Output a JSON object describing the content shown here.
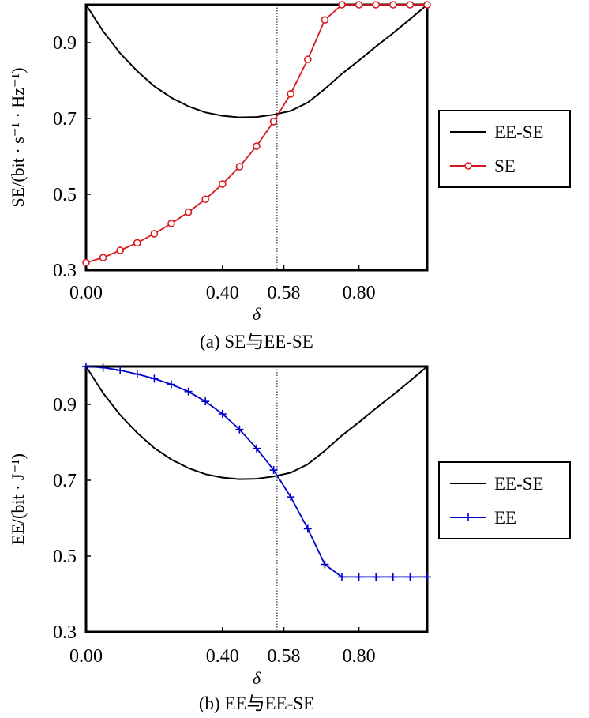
{
  "chart_data": [
    {
      "type": "line",
      "caption": "(a) SE与EE-SE",
      "xlabel": "δ",
      "ylabel": "SE/(bit · s⁻¹ · Hz⁻¹)",
      "xlim": [
        0,
        1
      ],
      "ylim": [
        0.3,
        1.0
      ],
      "xticks": [
        0.0,
        0.4,
        0.58,
        0.8
      ],
      "xtick_labels": [
        "0.00",
        "0.40",
        "0.58",
        "0.80"
      ],
      "yticks": [
        0.3,
        0.5,
        0.7,
        0.9
      ],
      "ytick_labels": [
        "0.3",
        "0.5",
        "0.7",
        "0.9"
      ],
      "vline": 0.56,
      "legend_position": "right",
      "series": [
        {
          "name": "EE-SE",
          "color": "#000000",
          "marker": "none",
          "x": [
            0.0,
            0.05,
            0.1,
            0.15,
            0.2,
            0.25,
            0.3,
            0.35,
            0.4,
            0.45,
            0.5,
            0.55,
            0.6,
            0.65,
            0.7,
            0.75,
            0.8,
            0.85,
            0.9,
            0.95,
            1.0
          ],
          "values": [
            1.0,
            0.93,
            0.872,
            0.825,
            0.785,
            0.755,
            0.732,
            0.716,
            0.707,
            0.703,
            0.704,
            0.71,
            0.72,
            0.742,
            0.778,
            0.818,
            0.853,
            0.89,
            0.925,
            0.962,
            1.0
          ]
        },
        {
          "name": "SE",
          "color": "#d7191c",
          "marker": "circle",
          "x": [
            0.0,
            0.05,
            0.1,
            0.15,
            0.2,
            0.25,
            0.3,
            0.35,
            0.4,
            0.45,
            0.5,
            0.55,
            0.6,
            0.65,
            0.7,
            0.75,
            0.8,
            0.85,
            0.9,
            0.95,
            1.0
          ],
          "values": [
            0.32,
            0.333,
            0.352,
            0.372,
            0.396,
            0.423,
            0.453,
            0.487,
            0.527,
            0.573,
            0.627,
            0.692,
            0.765,
            0.856,
            0.96,
            1.0,
            1.0,
            1.0,
            1.0,
            1.0,
            1.0
          ]
        }
      ]
    },
    {
      "type": "line",
      "caption": "(b) EE与EE-SE",
      "xlabel": "δ",
      "ylabel": "EE/(bit · J⁻¹)",
      "xlim": [
        0,
        1
      ],
      "ylim": [
        0.3,
        1.0
      ],
      "xticks": [
        0.0,
        0.4,
        0.58,
        0.8
      ],
      "xtick_labels": [
        "0.00",
        "0.40",
        "0.58",
        "0.80"
      ],
      "yticks": [
        0.3,
        0.5,
        0.7,
        0.9
      ],
      "ytick_labels": [
        "0.3",
        "0.5",
        "0.7",
        "0.9"
      ],
      "vline": 0.56,
      "legend_position": "right",
      "series": [
        {
          "name": "EE-SE",
          "color": "#000000",
          "marker": "none",
          "x": [
            0.0,
            0.05,
            0.1,
            0.15,
            0.2,
            0.25,
            0.3,
            0.35,
            0.4,
            0.45,
            0.5,
            0.55,
            0.6,
            0.65,
            0.7,
            0.75,
            0.8,
            0.85,
            0.9,
            0.95,
            1.0
          ],
          "values": [
            1.0,
            0.93,
            0.872,
            0.825,
            0.785,
            0.755,
            0.732,
            0.716,
            0.707,
            0.703,
            0.704,
            0.71,
            0.72,
            0.742,
            0.778,
            0.818,
            0.853,
            0.89,
            0.925,
            0.962,
            1.0
          ]
        },
        {
          "name": "EE",
          "color": "#0000cc",
          "marker": "plus",
          "x": [
            0.0,
            0.05,
            0.1,
            0.15,
            0.2,
            0.25,
            0.3,
            0.35,
            0.4,
            0.45,
            0.5,
            0.55,
            0.6,
            0.65,
            0.7,
            0.75,
            0.8,
            0.85,
            0.9,
            0.95,
            1.0
          ],
          "values": [
            1.0,
            0.997,
            0.99,
            0.98,
            0.968,
            0.953,
            0.934,
            0.908,
            0.875,
            0.834,
            0.784,
            0.727,
            0.656,
            0.572,
            0.478,
            0.445,
            0.445,
            0.445,
            0.445,
            0.445,
            0.445
          ]
        }
      ]
    }
  ]
}
